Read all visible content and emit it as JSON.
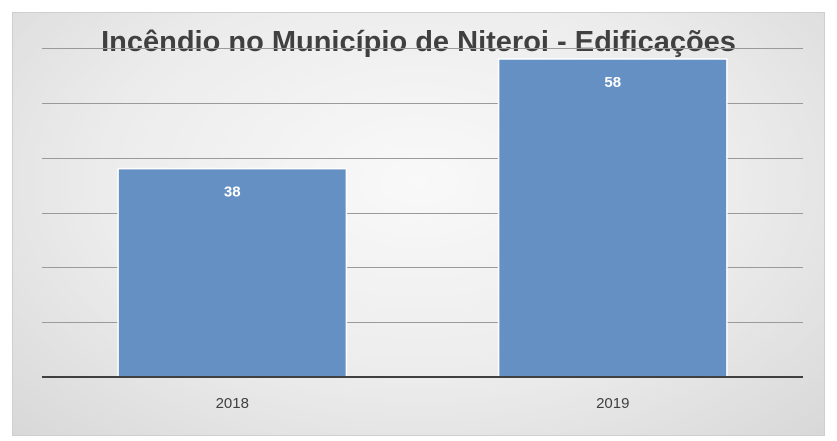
{
  "chart_data": {
    "type": "bar",
    "title": "Incêndio no Município de Niteroi - Edificações",
    "categories": [
      "2018",
      "2019"
    ],
    "values": [
      38,
      58
    ],
    "xlabel": "",
    "ylabel": "",
    "ylim": [
      0,
      60
    ],
    "grid": true,
    "legend": "none",
    "bar_color": "#6590c4",
    "label_color": "#ffffff"
  }
}
